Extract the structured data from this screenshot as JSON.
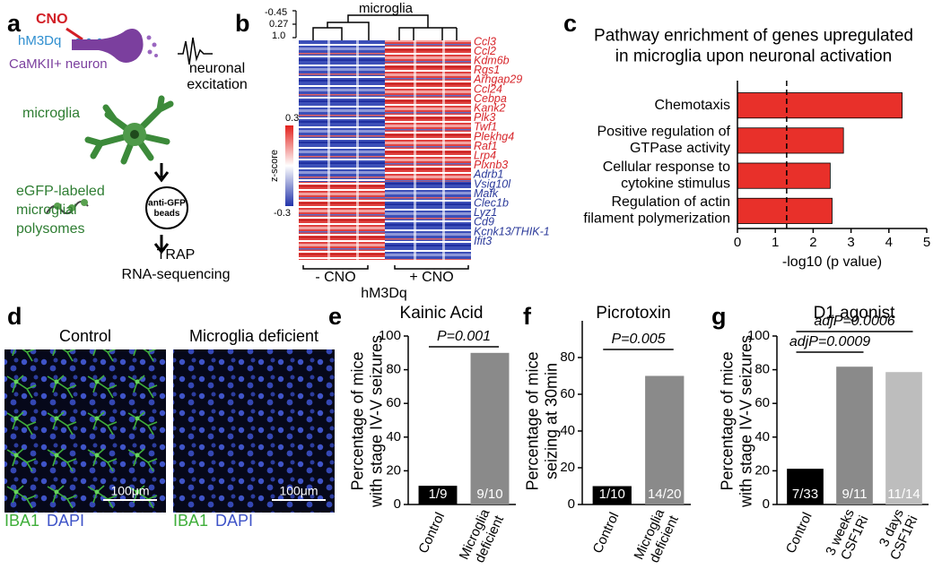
{
  "panel_labels": [
    "a",
    "b",
    "c",
    "d",
    "e",
    "f",
    "g"
  ],
  "panel_a": {
    "cno": "CNO",
    "receptor": "hM3Dq",
    "neuron": "CaMKII+ neuron",
    "excitation": "neuronal\nexcitation",
    "microglia": "microglia",
    "polysomes": "eGFP-labeled\nmicroglial\npolysomes",
    "beads": "anti-GFP\nbeads",
    "method": "TRAP\nRNA-sequencing"
  },
  "panel_b": {
    "cluster_label": "microglia",
    "dendrogram_scale": [
      "-0.45",
      "0.27",
      "1.0"
    ],
    "colorbar_title": "z-score",
    "colorbar_ticks": [
      "0.3",
      "-0.3"
    ],
    "genes_up": [
      "Ccl3",
      "Ccl2",
      "Kdm6b",
      "Rgs1",
      "Arhgap29",
      "Ccl24",
      "Cebpa",
      "Kank2",
      "Plk3",
      "Twf1",
      "Plekhg4",
      "Raf1",
      "Lrp4",
      "Plxnb3"
    ],
    "genes_down": [
      "Adrb1",
      "Vsig10l",
      "Mafk",
      "Clec1b",
      "Lyz1",
      "Cd9",
      "Kcnk13/THIK-1",
      "Ifit3"
    ],
    "groups": [
      "- CNO",
      "+ CNO"
    ],
    "condition": "hM3Dq"
  },
  "panel_d": {
    "titles": [
      "Control",
      "Microglia deficient"
    ],
    "scale_bar": "100μm",
    "stains": [
      "IBA1",
      "DAPI"
    ]
  },
  "chart_data": [
    {
      "type": "barh",
      "title": "Pathway enrichment of genes upregulated\nin microglia upon neuronal activation",
      "xlabel": "-log10 (p value)",
      "categories": [
        "Chemotaxis",
        "Positive regulation of\nGTPase activity",
        "Cellular response to\ncytokine stimulus",
        "Regulation of actin\nfilament polymerization"
      ],
      "values": [
        4.35,
        2.8,
        2.45,
        2.5
      ],
      "color": "#e8302a",
      "xlim": [
        0,
        5
      ],
      "xticks": [
        0,
        1,
        2,
        3,
        4,
        5
      ],
      "reference_line": 1.3
    },
    {
      "type": "bar",
      "title": "Kainic Acid",
      "ylabel": "Percentage of mice\nwith stage IV-V seizures",
      "categories": [
        "Control",
        "Microglia\ndeficient"
      ],
      "values": [
        11.1,
        90
      ],
      "colors": [
        "#000000",
        "#8a8a8a"
      ],
      "bar_annotations": [
        "1/9",
        "9/10"
      ],
      "comparisons": [
        "P=0.001"
      ],
      "ylim": [
        0,
        100
      ],
      "yticks": [
        0,
        20,
        40,
        60,
        80,
        100
      ]
    },
    {
      "type": "bar",
      "title": "Picrotoxin",
      "ylabel": "Percentage of mice\nseizing at 30min",
      "categories": [
        "Control",
        "Microglia\ndeficient"
      ],
      "values": [
        10,
        70
      ],
      "colors": [
        "#000000",
        "#8a8a8a"
      ],
      "bar_annotations": [
        "1/10",
        "14/20"
      ],
      "comparisons": [
        "P=0.005"
      ],
      "ylim": [
        0,
        100
      ],
      "yticks": [
        0,
        20,
        40,
        60,
        80
      ]
    },
    {
      "type": "bar",
      "title": "D1 agonist",
      "ylabel": "Percentage of mice\nwith stage IV-V seizures",
      "categories": [
        "Control",
        "3 weeks\nCSF1Ri",
        "3 days\nCSF1Ri"
      ],
      "values": [
        21.2,
        81.8,
        78.6
      ],
      "colors": [
        "#000000",
        "#8a8a8a",
        "#bdbdbd"
      ],
      "bar_annotations": [
        "7/33",
        "9/11",
        "11/14"
      ],
      "comparisons": [
        "adjP=0.0009",
        "adjP=0.0006"
      ],
      "ylim": [
        0,
        100
      ],
      "yticks": [
        0,
        20,
        40,
        60,
        80,
        100
      ]
    }
  ]
}
